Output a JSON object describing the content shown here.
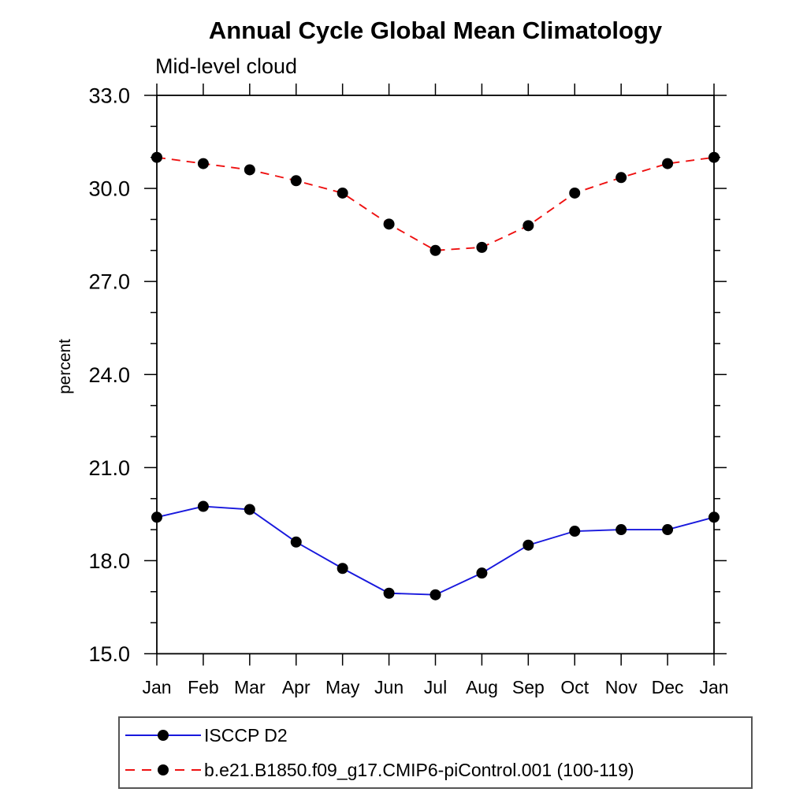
{
  "chart_data": {
    "type": "line",
    "title": "Annual Cycle Global Mean Climatology",
    "subtitle": "Mid-level cloud",
    "ylabel": "percent",
    "xlabel": "",
    "categories": [
      "Jan",
      "Feb",
      "Mar",
      "Apr",
      "May",
      "Jun",
      "Jul",
      "Aug",
      "Sep",
      "Oct",
      "Nov",
      "Dec",
      "Jan"
    ],
    "ylim": [
      15.0,
      33.0
    ],
    "ytick_interval": 3.0,
    "yminor_interval": 1.0,
    "ytick_labels": [
      "33.0",
      "30.0",
      "27.0",
      "24.0",
      "21.0",
      "18.0",
      "15.0"
    ],
    "grid": false,
    "legend_position": "bottom-left",
    "axis_color": "#000000",
    "series": [
      {
        "name": "ISCCP D2",
        "line_color": "#1818dd",
        "line_style": "solid",
        "marker": "filled-circle",
        "marker_color": "#000000",
        "values": [
          19.4,
          19.75,
          19.65,
          18.6,
          17.75,
          16.95,
          16.9,
          17.6,
          18.5,
          18.95,
          19.0,
          19.0,
          19.4
        ]
      },
      {
        "name": "b.e21.B1850.f09_g17.CMIP6-piControl.001 (100-119)",
        "line_color": "#ee1111",
        "line_style": "dashed",
        "marker": "filled-circle",
        "marker_color": "#000000",
        "values": [
          31.0,
          30.8,
          30.6,
          30.25,
          29.85,
          28.85,
          28.0,
          28.1,
          28.8,
          29.85,
          30.35,
          30.8,
          31.0
        ]
      }
    ]
  }
}
